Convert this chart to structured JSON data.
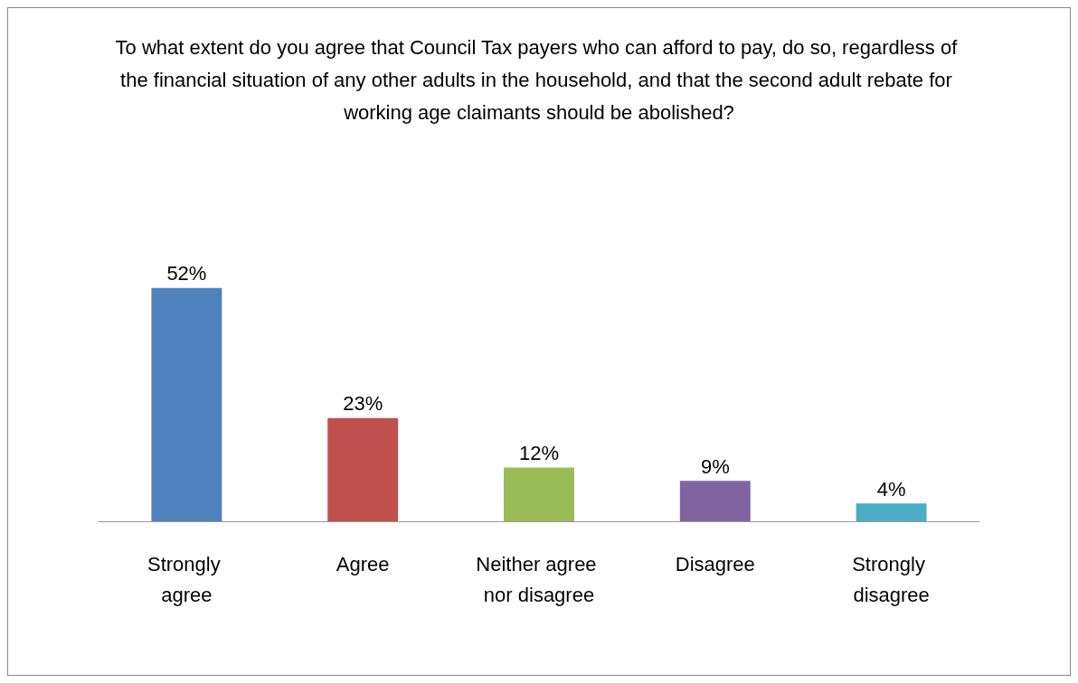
{
  "chart_data": {
    "type": "bar",
    "title": "To what extent do you agree that Council Tax payers who can afford to pay, do so, regardless of the financial situation of any other adults in the household, and that the second adult rebate for working age claimants should be abolished?",
    "categories": [
      "Strongly agree",
      "Agree",
      "Neither agree nor disagree",
      "Disagree",
      "Strongly disagree"
    ],
    "values": [
      52,
      23,
      12,
      9,
      4
    ],
    "value_labels": [
      "52%",
      "23%",
      "12%",
      "9%",
      "4%"
    ],
    "colors": [
      "#4f81bd",
      "#c0504d",
      "#9bbb59",
      "#8064a2",
      "#4bacc6"
    ]
  }
}
